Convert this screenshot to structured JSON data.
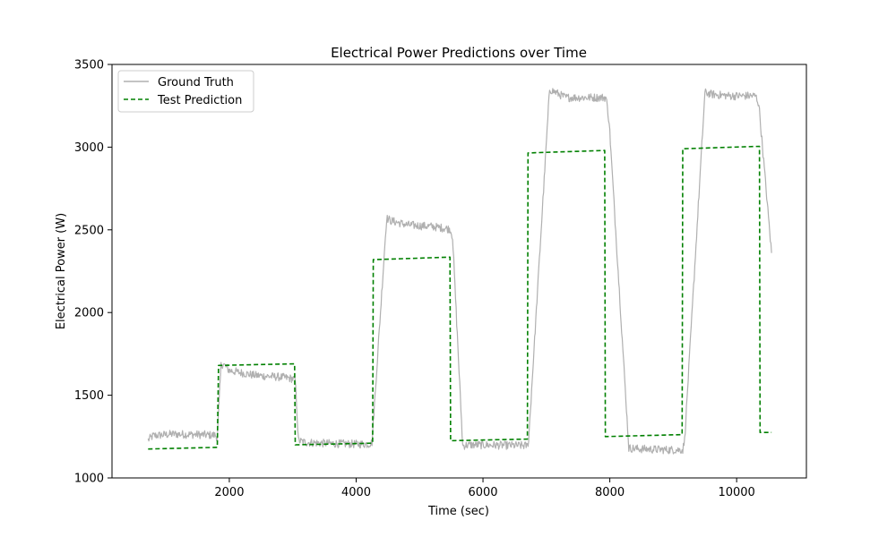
{
  "chart_data": {
    "type": "line",
    "title": "Electrical Power Predictions over Time",
    "xlabel": "Time (sec)",
    "ylabel": "Electrical Power (W)",
    "xlim": [
      150,
      11100
    ],
    "ylim": [
      1000,
      3500
    ],
    "xticks": [
      2000,
      4000,
      6000,
      8000,
      10000
    ],
    "yticks": [
      1000,
      1500,
      2000,
      2500,
      3000,
      3500
    ],
    "grid": false,
    "legend_position": "top-left",
    "series": [
      {
        "name": "Ground Truth",
        "color": "#b0b0b0",
        "style": "solid",
        "noise": 25,
        "points": [
          [
            720,
            1230
          ],
          [
            800,
            1255
          ],
          [
            1100,
            1265
          ],
          [
            1500,
            1262
          ],
          [
            1780,
            1258
          ],
          [
            1810,
            1245
          ],
          [
            1870,
            1680
          ],
          [
            1900,
            1690
          ],
          [
            2000,
            1650
          ],
          [
            2400,
            1620
          ],
          [
            2800,
            1610
          ],
          [
            3000,
            1600
          ],
          [
            3040,
            1590
          ],
          [
            3090,
            1225
          ],
          [
            3200,
            1215
          ],
          [
            3600,
            1208
          ],
          [
            4000,
            1205
          ],
          [
            4200,
            1205
          ],
          [
            4250,
            1215
          ],
          [
            4480,
            2570
          ],
          [
            4550,
            2555
          ],
          [
            4800,
            2530
          ],
          [
            5200,
            2520
          ],
          [
            5480,
            2505
          ],
          [
            5520,
            2460
          ],
          [
            5680,
            1195
          ],
          [
            5800,
            1200
          ],
          [
            6200,
            1198
          ],
          [
            6700,
            1195
          ],
          [
            6720,
            1230
          ],
          [
            7050,
            3350
          ],
          [
            7100,
            3340
          ],
          [
            7300,
            3300
          ],
          [
            7700,
            3300
          ],
          [
            7940,
            3300
          ],
          [
            7990,
            3150
          ],
          [
            8300,
            1180
          ],
          [
            8500,
            1175
          ],
          [
            8900,
            1170
          ],
          [
            9150,
            1170
          ],
          [
            9180,
            1230
          ],
          [
            9500,
            3330
          ],
          [
            9600,
            3320
          ],
          [
            9900,
            3310
          ],
          [
            10300,
            3310
          ],
          [
            10350,
            3260
          ],
          [
            10550,
            2360
          ]
        ]
      },
      {
        "name": "Test Prediction",
        "color": "#008000",
        "style": "dashed",
        "points": [
          [
            720,
            1175
          ],
          [
            1810,
            1185
          ],
          [
            1830,
            1680
          ],
          [
            3030,
            1690
          ],
          [
            3040,
            1200
          ],
          [
            4260,
            1210
          ],
          [
            4270,
            2320
          ],
          [
            5480,
            2335
          ],
          [
            5490,
            1225
          ],
          [
            6700,
            1235
          ],
          [
            6710,
            2965
          ],
          [
            7920,
            2980
          ],
          [
            7930,
            1250
          ],
          [
            9140,
            1262
          ],
          [
            9150,
            2990
          ],
          [
            10360,
            3005
          ],
          [
            10370,
            1275
          ],
          [
            10550,
            1275
          ]
        ]
      }
    ]
  }
}
